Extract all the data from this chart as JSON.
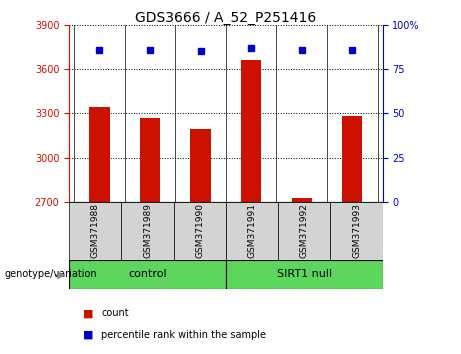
{
  "title": "GDS3666 / A_52_P251416",
  "samples": [
    "GSM371988",
    "GSM371989",
    "GSM371990",
    "GSM371991",
    "GSM371992",
    "GSM371993"
  ],
  "bar_values": [
    3345,
    3270,
    3195,
    3660,
    2725,
    3280
  ],
  "percentile_values": [
    86,
    86,
    85,
    87,
    86,
    86
  ],
  "ylim_left": [
    2700,
    3900
  ],
  "yticks_left": [
    2700,
    3000,
    3300,
    3600,
    3900
  ],
  "ylim_right": [
    0,
    100
  ],
  "yticks_right": [
    0,
    25,
    50,
    75,
    100
  ],
  "bar_color": "#cc1100",
  "dot_color": "#0000cc",
  "group_labels": [
    "control",
    "SIRT1 null"
  ],
  "legend_count_label": "count",
  "legend_percentile_label": "percentile rank within the sample",
  "xlabel_group": "genotype/variation",
  "tick_color_left": "#cc1100",
  "tick_color_right": "#0000cc",
  "xticklabel_bg": "#d3d3d3",
  "group_bg": "#5cd65c",
  "bar_width": 0.4
}
